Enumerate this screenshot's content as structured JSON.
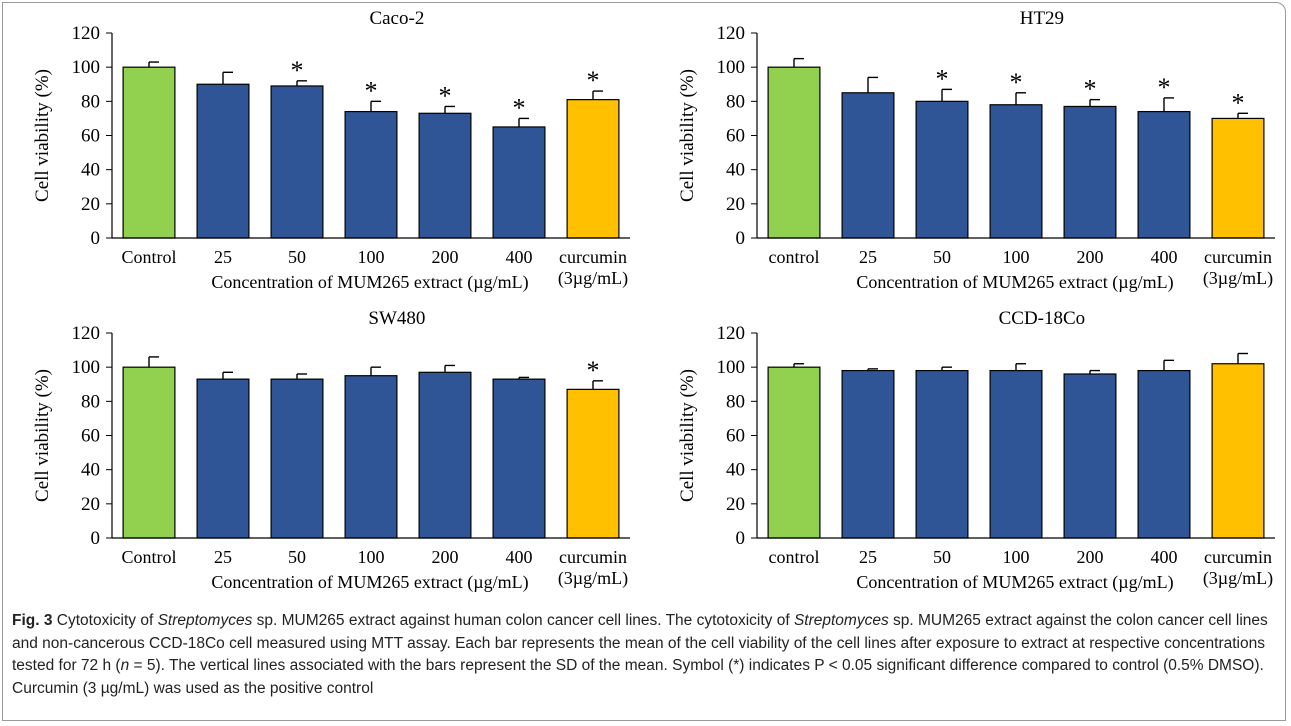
{
  "colors": {
    "control": "#92d050",
    "extract": "#2f5597",
    "curcumin": "#ffc000",
    "axis": "#000000"
  },
  "chart_data": [
    {
      "type": "bar",
      "title": "Caco-2",
      "ylabel": "Cell viability (%)",
      "xlabel": "Concentration of MUM265 extract (µg/mL)",
      "ylim": [
        0,
        120
      ],
      "yticks": [
        0,
        20,
        40,
        60,
        80,
        100,
        120
      ],
      "categories": [
        "Control",
        "25",
        "50",
        "100",
        "200",
        "400",
        "curcumin"
      ],
      "category_sublabels": [
        "",
        "",
        "",
        "",
        "",
        "",
        "(3µg/mL)"
      ],
      "values": [
        100,
        90,
        89,
        74,
        73,
        65,
        81
      ],
      "sd": [
        3,
        7,
        3,
        6,
        4,
        5,
        5
      ],
      "significant": [
        false,
        false,
        true,
        true,
        true,
        true,
        true
      ],
      "grid": false
    },
    {
      "type": "bar",
      "title": "HT29",
      "ylabel": "Cell viability (%)",
      "xlabel": "Concentration  of MUM265 extract (µg/mL)",
      "ylim": [
        0,
        120
      ],
      "yticks": [
        0,
        20,
        40,
        60,
        80,
        100,
        120
      ],
      "categories": [
        "control",
        "25",
        "50",
        "100",
        "200",
        "400",
        "curcumin"
      ],
      "category_sublabels": [
        "",
        "",
        "",
        "",
        "",
        "",
        "(3µg/mL)"
      ],
      "values": [
        100,
        85,
        80,
        78,
        77,
        74,
        70
      ],
      "sd": [
        5,
        9,
        7,
        7,
        4,
        8,
        3
      ],
      "significant": [
        false,
        false,
        true,
        true,
        true,
        true,
        true
      ],
      "grid": false
    },
    {
      "type": "bar",
      "title": "SW480",
      "ylabel": "Cell viability (%)",
      "xlabel": "Concentration of MUM265 extract (µg/mL)",
      "ylim": [
        0,
        120
      ],
      "yticks": [
        0,
        20,
        40,
        60,
        80,
        100,
        120
      ],
      "categories": [
        "Control",
        "25",
        "50",
        "100",
        "200",
        "400",
        "curcumin"
      ],
      "category_sublabels": [
        "",
        "",
        "",
        "",
        "",
        "",
        "(3µg/mL)"
      ],
      "values": [
        100,
        93,
        93,
        95,
        97,
        93,
        87
      ],
      "sd": [
        6,
        4,
        3,
        5,
        4,
        1,
        5
      ],
      "significant": [
        false,
        false,
        false,
        false,
        false,
        false,
        true
      ],
      "grid": false
    },
    {
      "type": "bar",
      "title": "CCD-18Co",
      "ylabel": "Cell viability (%)",
      "xlabel": "Concentration of MUM265 extract (µg/mL)",
      "ylim": [
        0,
        120
      ],
      "yticks": [
        0,
        20,
        40,
        60,
        80,
        100,
        120
      ],
      "categories": [
        "control",
        "25",
        "50",
        "100",
        "200",
        "400",
        "curcumin"
      ],
      "category_sublabels": [
        "",
        "",
        "",
        "",
        "",
        "",
        "(3µg/mL)"
      ],
      "values": [
        100,
        98,
        98,
        98,
        96,
        98,
        102
      ],
      "sd": [
        2,
        1,
        2,
        4,
        2,
        6,
        6
      ],
      "significant": [
        false,
        false,
        false,
        false,
        false,
        false,
        false
      ],
      "grid": false
    }
  ],
  "caption": {
    "fig_label": "Fig. 3",
    "seg1": " Cytotoxicity of ",
    "ital1": "Streptomyces",
    "seg2": " sp. MUM265 extract against human colon cancer cell lines. The cytotoxicity of ",
    "ital2": "Streptomyces",
    "seg3": " sp. MUM265 extract against the colon cancer cell lines and non-cancerous CCD-18Co cell measured using MTT assay. Each bar represents the mean of the cell viability of the cell lines after exposure to extract at respective concentrations tested for 72 h (",
    "ital3": "n",
    "seg4": " = 5). The vertical lines associated with the bars represent the SD of the mean. Symbol (*) indicates P < 0.05 significant difference compared to control (0.5% DMSO). Curcumin (3 µg/mL) was used as the positive control"
  }
}
